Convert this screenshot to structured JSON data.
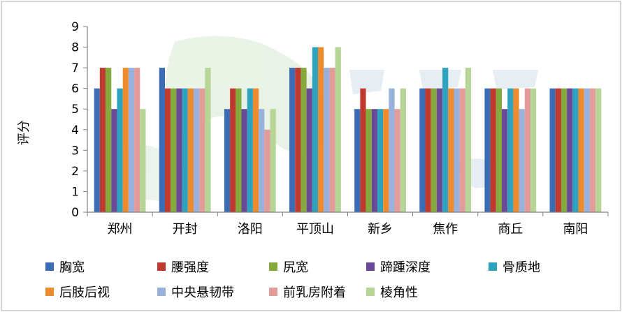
{
  "chart_data": {
    "type": "bar",
    "ylabel": "评分",
    "xlabel": "",
    "ylim": [
      0,
      9
    ],
    "yticks": [
      0,
      1,
      2,
      3,
      4,
      5,
      6,
      7,
      8,
      9
    ],
    "grid": false,
    "legend_position": "bottom",
    "categories": [
      "郑州",
      "开封",
      "洛阳",
      "平顶山",
      "新乡",
      "焦作",
      "商丘",
      "南阳"
    ],
    "series": [
      {
        "name": "胸宽",
        "color": "#3a6db5",
        "values": [
          6,
          7,
          5,
          7,
          5,
          6,
          6,
          6
        ]
      },
      {
        "name": "腰强度",
        "color": "#c0392f",
        "values": [
          7,
          6,
          6,
          7,
          6,
          6,
          6,
          6
        ]
      },
      {
        "name": "尻宽",
        "color": "#85aa3c",
        "values": [
          7,
          6,
          6,
          7,
          5,
          6,
          6,
          6
        ]
      },
      {
        "name": "蹄踵深度",
        "color": "#6a4a96",
        "values": [
          5,
          6,
          5,
          6,
          5,
          6,
          5,
          6
        ]
      },
      {
        "name": "骨质地",
        "color": "#2ea3c0",
        "values": [
          6,
          6,
          6,
          8,
          5,
          7,
          6,
          6
        ]
      },
      {
        "name": "后肢后视",
        "color": "#ee8b2d",
        "values": [
          7,
          6,
          6,
          8,
          5,
          6,
          6,
          6
        ]
      },
      {
        "name": "中央悬韧带",
        "color": "#98b1dd",
        "values": [
          7,
          6,
          5,
          7,
          6,
          6,
          5,
          6
        ]
      },
      {
        "name": "前乳房附着",
        "color": "#e39c9a",
        "values": [
          7,
          6,
          4,
          7,
          5,
          6,
          6,
          6
        ]
      },
      {
        "name": "棱角性",
        "color": "#b6d596",
        "values": [
          5,
          7,
          5,
          8,
          6,
          7,
          6,
          6
        ]
      }
    ]
  }
}
